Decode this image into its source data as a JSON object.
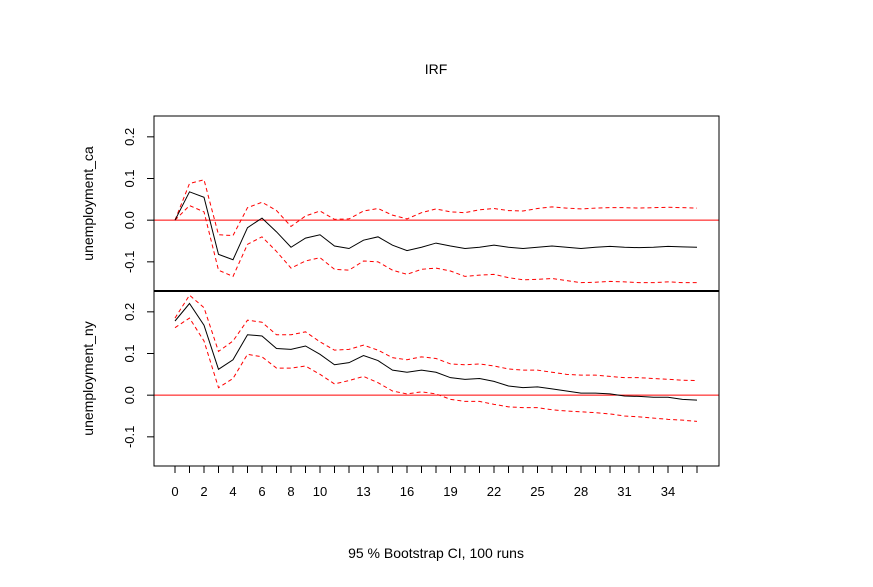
{
  "chart_data": {
    "type": "line",
    "title": "IRF",
    "footer": "95 % Bootstrap CI,  100 runs",
    "x": [
      0,
      1,
      2,
      3,
      4,
      5,
      6,
      7,
      8,
      9,
      10,
      11,
      12,
      13,
      14,
      15,
      16,
      17,
      18,
      19,
      20,
      21,
      22,
      23,
      24,
      25,
      26,
      27,
      28,
      29,
      30,
      31,
      32,
      33,
      34,
      35,
      36
    ],
    "x_tick_labels": [
      "0",
      "2",
      "4",
      "6",
      "8",
      "10",
      "13",
      "16",
      "19",
      "22",
      "25",
      "28",
      "31",
      "34"
    ],
    "x_tick_values": [
      0,
      2,
      4,
      6,
      8,
      10,
      13,
      16,
      19,
      22,
      25,
      28,
      31,
      34
    ],
    "xlim": [
      0,
      36
    ],
    "colors": {
      "irf": "#000000",
      "ci": "#ff0000",
      "zero_line": "#ff0000"
    },
    "panels": [
      {
        "ylabel": "unemployment_ca",
        "ylim": [
          -0.17,
          0.25
        ],
        "y_ticks": [
          -0.1,
          0.0,
          0.1,
          0.2
        ],
        "y_tick_labels": [
          "-0.1",
          "0.0",
          "0.1",
          "0.2"
        ],
        "zero_line": 0,
        "irf": [
          0.0,
          0.068,
          0.055,
          -0.082,
          -0.095,
          -0.018,
          0.005,
          -0.028,
          -0.065,
          -0.043,
          -0.035,
          -0.062,
          -0.068,
          -0.048,
          -0.04,
          -0.06,
          -0.073,
          -0.065,
          -0.055,
          -0.062,
          -0.068,
          -0.065,
          -0.06,
          -0.065,
          -0.068,
          -0.065,
          -0.062,
          -0.065,
          -0.068,
          -0.065,
          -0.063,
          -0.065,
          -0.066,
          -0.065,
          -0.063,
          -0.064,
          -0.065
        ],
        "upper": [
          0.0,
          0.088,
          0.097,
          -0.035,
          -0.037,
          0.03,
          0.043,
          0.023,
          -0.015,
          0.01,
          0.022,
          0.002,
          0.003,
          0.022,
          0.028,
          0.012,
          0.003,
          0.018,
          0.027,
          0.02,
          0.018,
          0.025,
          0.028,
          0.023,
          0.022,
          0.028,
          0.032,
          0.029,
          0.027,
          0.029,
          0.03,
          0.03,
          0.029,
          0.03,
          0.031,
          0.03,
          0.029
        ],
        "lower": [
          0.0,
          0.035,
          0.02,
          -0.12,
          -0.135,
          -0.058,
          -0.04,
          -0.075,
          -0.115,
          -0.098,
          -0.09,
          -0.118,
          -0.12,
          -0.098,
          -0.1,
          -0.12,
          -0.13,
          -0.118,
          -0.115,
          -0.122,
          -0.135,
          -0.132,
          -0.13,
          -0.138,
          -0.143,
          -0.142,
          -0.14,
          -0.145,
          -0.15,
          -0.149,
          -0.147,
          -0.148,
          -0.15,
          -0.15,
          -0.148,
          -0.15,
          -0.15
        ]
      },
      {
        "ylabel": "unemployment_ny",
        "ylim": [
          -0.17,
          0.25
        ],
        "y_ticks": [
          -0.1,
          0.0,
          0.1,
          0.2
        ],
        "y_tick_labels": [
          "-0.1",
          "0.0",
          "0.1",
          "0.2"
        ],
        "zero_line": 0,
        "irf": [
          0.178,
          0.22,
          0.168,
          0.062,
          0.085,
          0.145,
          0.142,
          0.112,
          0.11,
          0.118,
          0.098,
          0.073,
          0.078,
          0.095,
          0.083,
          0.06,
          0.055,
          0.06,
          0.055,
          0.042,
          0.038,
          0.04,
          0.033,
          0.022,
          0.018,
          0.02,
          0.015,
          0.01,
          0.005,
          0.005,
          0.003,
          -0.002,
          -0.003,
          -0.005,
          -0.005,
          -0.01,
          -0.012
        ],
        "upper": [
          0.185,
          0.24,
          0.21,
          0.105,
          0.13,
          0.18,
          0.175,
          0.145,
          0.145,
          0.152,
          0.128,
          0.108,
          0.11,
          0.12,
          0.108,
          0.09,
          0.085,
          0.092,
          0.088,
          0.075,
          0.073,
          0.075,
          0.07,
          0.063,
          0.06,
          0.06,
          0.055,
          0.05,
          0.048,
          0.048,
          0.045,
          0.042,
          0.042,
          0.04,
          0.038,
          0.036,
          0.035
        ],
        "lower": [
          0.162,
          0.185,
          0.13,
          0.018,
          0.04,
          0.098,
          0.092,
          0.065,
          0.065,
          0.07,
          0.05,
          0.027,
          0.035,
          0.045,
          0.03,
          0.01,
          0.003,
          0.008,
          0.003,
          -0.01,
          -0.015,
          -0.015,
          -0.022,
          -0.028,
          -0.03,
          -0.03,
          -0.035,
          -0.038,
          -0.04,
          -0.042,
          -0.045,
          -0.05,
          -0.052,
          -0.055,
          -0.058,
          -0.06,
          -0.063
        ]
      }
    ]
  }
}
